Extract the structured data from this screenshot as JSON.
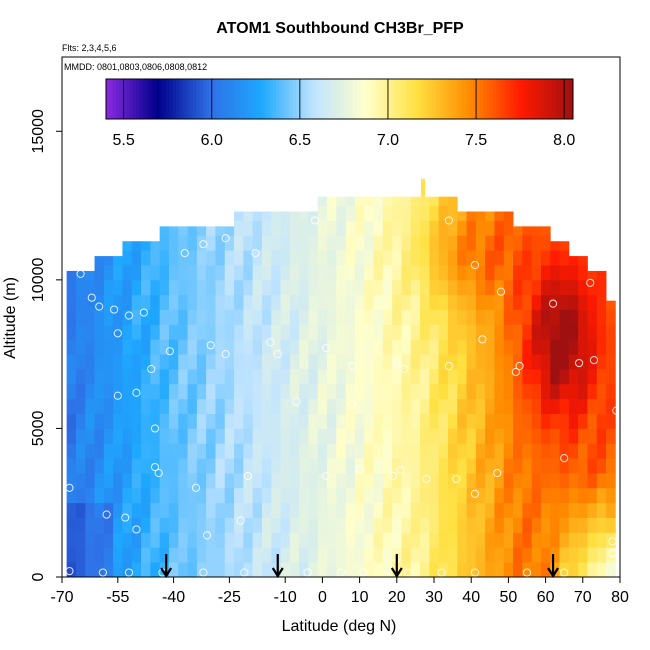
{
  "chart_data": {
    "type": "heatmap",
    "title": "ATOM1 Southbound CH3Br_PFP",
    "subtitle_flights": "Flts: 2,3,4,5,6",
    "subtitle_dates": "MMDD: 0801,0803,0806,0808,0812",
    "xlabel": "Latitude (deg N)",
    "ylabel": "Altitude (m)",
    "xlim": [
      -70,
      80
    ],
    "ylim": [
      0,
      17500
    ],
    "x_ticks": [
      -70,
      -55,
      -40,
      -25,
      -10,
      0,
      10,
      20,
      30,
      40,
      50,
      60,
      70,
      80
    ],
    "y_ticks": [
      0,
      5000,
      10000,
      15000
    ],
    "colorbar": {
      "range": [
        5.4,
        8.05
      ],
      "ticks": [
        5.5,
        6.0,
        6.5,
        7.0,
        7.5,
        8.0
      ],
      "tick_labels": [
        "5.5",
        "6.0",
        "6.5",
        "7.0",
        "7.5",
        "8.0"
      ],
      "colormap": [
        "#8B2BE2",
        "#00008B",
        "#2F6FE6",
        "#1EA8FF",
        "#BFE3FF",
        "#FFFFCC",
        "#FFE040",
        "#FF8C00",
        "#FF1A00",
        "#A01010"
      ]
    },
    "field": {
      "lat_start": -67.5,
      "lat_step": 2.5,
      "lat_end": 77.5,
      "alt_step": 500,
      "alt_max": 13500,
      "top_boundary": [
        {
          "lat": -67.5,
          "alt": 10300
        },
        {
          "lat": -62.5,
          "alt": 10800
        },
        {
          "lat": -55,
          "alt": 11300
        },
        {
          "lat": -45,
          "alt": 11800
        },
        {
          "lat": -25,
          "alt": 12300
        },
        {
          "lat": -12,
          "alt": 12300
        },
        {
          "lat": -2,
          "alt": 12800
        },
        {
          "lat": 25,
          "alt": 12800
        },
        {
          "lat": 32,
          "alt": 12800
        },
        {
          "lat": 37,
          "alt": 12300
        },
        {
          "lat": 52,
          "alt": 11800
        },
        {
          "lat": 62,
          "alt": 11300
        },
        {
          "lat": 67,
          "alt": 10800
        },
        {
          "lat": 72,
          "alt": 10300
        },
        {
          "lat": 75,
          "alt": 9300
        },
        {
          "lat": 77.5,
          "alt": 8000
        }
      ]
    },
    "flight_arrows_lat": [
      -42,
      -12,
      20,
      62
    ],
    "sample_points": [
      {
        "lat": -65,
        "alt": 10200
      },
      {
        "lat": -62,
        "alt": 9400
      },
      {
        "lat": -60,
        "alt": 9100
      },
      {
        "lat": -56,
        "alt": 9000
      },
      {
        "lat": -52,
        "alt": 8800
      },
      {
        "lat": -48,
        "alt": 8900
      },
      {
        "lat": -55,
        "alt": 8200
      },
      {
        "lat": -45,
        "alt": 11600
      },
      {
        "lat": -37,
        "alt": 10900
      },
      {
        "lat": -32,
        "alt": 11200
      },
      {
        "lat": -26,
        "alt": 11400
      },
      {
        "lat": -18,
        "alt": 10900
      },
      {
        "lat": -2,
        "alt": 12000
      },
      {
        "lat": 34,
        "alt": 12000
      },
      {
        "lat": 41,
        "alt": 10500
      },
      {
        "lat": 48,
        "alt": 9600
      },
      {
        "lat": 62,
        "alt": 9200
      },
      {
        "lat": 72,
        "alt": 9900
      },
      {
        "lat": 43,
        "alt": 8000
      },
      {
        "lat": 53,
        "alt": 7100
      },
      {
        "lat": 69,
        "alt": 7200
      },
      {
        "lat": 73,
        "alt": 7300
      },
      {
        "lat": 52,
        "alt": 6900
      },
      {
        "lat": 34,
        "alt": 7100
      },
      {
        "lat": 22,
        "alt": 7000
      },
      {
        "lat": 8,
        "alt": 7100
      },
      {
        "lat": 1,
        "alt": 7700
      },
      {
        "lat": -14,
        "alt": 7900
      },
      {
        "lat": -30,
        "alt": 7800
      },
      {
        "lat": -41,
        "alt": 7600
      },
      {
        "lat": -46,
        "alt": 7000
      },
      {
        "lat": -50,
        "alt": 6200
      },
      {
        "lat": -55,
        "alt": 6100
      },
      {
        "lat": -26,
        "alt": 7500
      },
      {
        "lat": -12,
        "alt": 7500
      },
      {
        "lat": 20,
        "alt": 7200
      },
      {
        "lat": 65,
        "alt": 4000
      },
      {
        "lat": 79,
        "alt": 5600
      },
      {
        "lat": -7,
        "alt": 5900
      },
      {
        "lat": 8,
        "alt": 5800
      },
      {
        "lat": -45,
        "alt": 5000
      },
      {
        "lat": -45,
        "alt": 3700
      },
      {
        "lat": -44,
        "alt": 3500
      },
      {
        "lat": -34,
        "alt": 3000
      },
      {
        "lat": -20,
        "alt": 3400
      },
      {
        "lat": 1,
        "alt": 3400
      },
      {
        "lat": 10,
        "alt": 3600
      },
      {
        "lat": 19,
        "alt": 3400
      },
      {
        "lat": 21,
        "alt": 3600
      },
      {
        "lat": 28,
        "alt": 3300
      },
      {
        "lat": 36,
        "alt": 3300
      },
      {
        "lat": 47,
        "alt": 3500
      },
      {
        "lat": 41,
        "alt": 2800
      },
      {
        "lat": -68,
        "alt": 3000
      },
      {
        "lat": -58,
        "alt": 2100
      },
      {
        "lat": -53,
        "alt": 2000
      },
      {
        "lat": -50,
        "alt": 1600
      },
      {
        "lat": -31,
        "alt": 1400
      },
      {
        "lat": -22,
        "alt": 1900
      },
      {
        "lat": 78,
        "alt": 1200
      },
      {
        "lat": 78,
        "alt": 800
      },
      {
        "lat": -68,
        "alt": 200
      },
      {
        "lat": -59,
        "alt": 150
      },
      {
        "lat": -52,
        "alt": 150
      },
      {
        "lat": -43,
        "alt": 150
      },
      {
        "lat": -32,
        "alt": 150
      },
      {
        "lat": -21,
        "alt": 150
      },
      {
        "lat": -4,
        "alt": 150
      },
      {
        "lat": 5,
        "alt": 150
      },
      {
        "lat": 11,
        "alt": 150
      },
      {
        "lat": 23,
        "alt": 150
      },
      {
        "lat": 32,
        "alt": 150
      },
      {
        "lat": 41,
        "alt": 150
      },
      {
        "lat": 55,
        "alt": 150
      },
      {
        "lat": 65,
        "alt": 150
      }
    ]
  }
}
